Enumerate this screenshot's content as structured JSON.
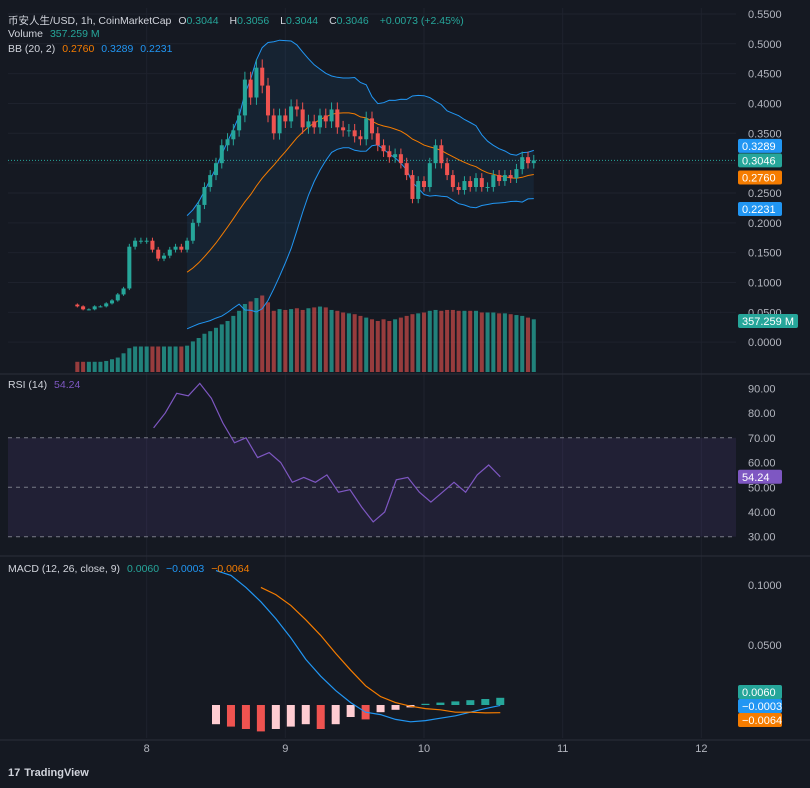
{
  "legend": {
    "symbol": "币安人生/USD, 1h, CoinMarketCap",
    "o_label": "O",
    "o_value": "0.3044",
    "h_label": "H",
    "h_value": "0.3056",
    "l_label": "L",
    "l_value": "0.3044",
    "c_label": "C",
    "c_value": "0.3046",
    "change": "+0.0073 (+2.45%)",
    "volume_label": "Volume",
    "volume_value": "357.259 M",
    "bb_label": "BB (20, 2)",
    "bb_mid": "0.2760",
    "bb_upper": "0.3289",
    "bb_lower": "0.2231",
    "rsi_label": "RSI (14)",
    "rsi_value": "54.24",
    "macd_label": "MACD (12, 26, close, 9)",
    "macd_hist": "0.0060",
    "macd_line": "−0.0003",
    "macd_signal": "−0.0064"
  },
  "branding": {
    "logo_mark": "17",
    "logo_text": "TradingView"
  },
  "colors": {
    "up": "#26a69a",
    "down": "#ef5350",
    "bb": "#2196f3",
    "basis": "#f57c00",
    "rsi": "#7e57c2",
    "macd": "#2196f3",
    "signal": "#f57c00",
    "text": "#b2b5be",
    "bg": "#151922"
  },
  "chart_data": [
    {
      "type": "candlestick",
      "panel": "price",
      "title": "币安人生/USD, 1h, CoinMarketCap",
      "y_ticks": [
        "0.5500",
        "0.5000",
        "0.4500",
        "0.4000",
        "0.3500",
        "0.3000",
        "0.2500",
        "0.2000",
        "0.1500",
        "0.1000",
        "0.0500",
        "0.0000"
      ],
      "ylim": [
        -0.05,
        0.56
      ],
      "x_ticks": [
        "8",
        "9",
        "10",
        "11",
        "12"
      ],
      "x_tick_days": [
        8,
        9,
        10,
        11,
        12
      ],
      "xlim": [
        7.0,
        12.25
      ],
      "start_day": 7.5,
      "bar_hours": 1,
      "close": [
        0.06,
        0.055,
        0.055,
        0.06,
        0.06,
        0.065,
        0.07,
        0.08,
        0.09,
        0.16,
        0.17,
        0.17,
        0.17,
        0.155,
        0.14,
        0.145,
        0.155,
        0.16,
        0.155,
        0.17,
        0.2,
        0.23,
        0.26,
        0.28,
        0.3,
        0.33,
        0.34,
        0.355,
        0.38,
        0.44,
        0.41,
        0.46,
        0.43,
        0.38,
        0.35,
        0.38,
        0.37,
        0.395,
        0.39,
        0.36,
        0.37,
        0.36,
        0.38,
        0.37,
        0.39,
        0.36,
        0.355,
        0.355,
        0.345,
        0.34,
        0.375,
        0.35,
        0.33,
        0.32,
        0.31,
        0.315,
        0.3,
        0.28,
        0.24,
        0.27,
        0.26,
        0.3,
        0.33,
        0.3,
        0.28,
        0.26,
        0.255,
        0.27,
        0.26,
        0.275,
        0.26,
        0.26,
        0.28,
        0.27,
        0.28,
        0.275,
        0.29,
        0.31,
        0.3,
        0.3046
      ],
      "series": [
        {
          "name": "BB Upper",
          "value": 0.3289
        },
        {
          "name": "BB Basis",
          "value": 0.276
        },
        {
          "name": "BB Lower",
          "value": 0.2231
        }
      ],
      "last_price": 0.3046
    },
    {
      "type": "bar",
      "panel": "volume",
      "title": "Volume",
      "last_value": "357.259 M",
      "values": [
        0.12,
        0.12,
        0.12,
        0.12,
        0.12,
        0.13,
        0.15,
        0.17,
        0.22,
        0.28,
        0.3,
        0.3,
        0.3,
        0.3,
        0.3,
        0.3,
        0.3,
        0.3,
        0.3,
        0.31,
        0.36,
        0.4,
        0.45,
        0.48,
        0.52,
        0.56,
        0.6,
        0.66,
        0.72,
        0.8,
        0.83,
        0.87,
        0.9,
        0.82,
        0.72,
        0.74,
        0.73,
        0.74,
        0.75,
        0.73,
        0.75,
        0.76,
        0.77,
        0.76,
        0.73,
        0.72,
        0.7,
        0.69,
        0.68,
        0.66,
        0.64,
        0.62,
        0.6,
        0.62,
        0.6,
        0.62,
        0.64,
        0.66,
        0.68,
        0.69,
        0.7,
        0.72,
        0.73,
        0.72,
        0.73,
        0.73,
        0.72,
        0.72,
        0.72,
        0.72,
        0.7,
        0.7,
        0.7,
        0.69,
        0.69,
        0.68,
        0.67,
        0.66,
        0.64,
        0.62
      ]
    },
    {
      "type": "line",
      "panel": "rsi",
      "title": "RSI (14)",
      "y_ticks": [
        "90.00",
        "80.00",
        "70.00",
        "60.00",
        "50.00",
        "40.00",
        "30.00"
      ],
      "ylim": [
        23,
        95
      ],
      "band": [
        30,
        70
      ],
      "midline": 50,
      "start_day": 8.05,
      "end_day": 10.55,
      "values": [
        74,
        80,
        88,
        87,
        92,
        86,
        76,
        68,
        70,
        62,
        64,
        60,
        52,
        54,
        52,
        55,
        48,
        49,
        42,
        36,
        40,
        53,
        54,
        48,
        44,
        48,
        52,
        48,
        55,
        59,
        54.24
      ],
      "last_value": "54.24"
    },
    {
      "type": "line",
      "panel": "macd",
      "title": "MACD (12, 26, close, 9)",
      "y_ticks": [
        "0.1000",
        "0.0500"
      ],
      "ylim": [
        -0.0275,
        0.1225
      ],
      "start_day": 8.5,
      "series": [
        {
          "name": "MACD",
          "values": [
            0.112,
            0.108,
            0.098,
            0.086,
            0.072,
            0.056,
            0.038,
            0.024,
            0.012,
            0.002,
            -0.006,
            -0.008,
            -0.012,
            -0.014,
            -0.013,
            -0.011,
            -0.009,
            -0.006,
            -0.003,
            -0.0003
          ]
        },
        {
          "name": "Signal",
          "values": [
            null,
            null,
            null,
            0.098,
            0.092,
            0.083,
            0.071,
            0.058,
            0.043,
            0.029,
            0.016,
            0.007,
            0.002,
            -0.001,
            -0.003,
            -0.004,
            -0.006,
            -0.006,
            -0.0066,
            -0.0064
          ]
        }
      ],
      "histogram": [
        -0.016,
        -0.018,
        -0.02,
        -0.022,
        -0.02,
        -0.018,
        -0.016,
        -0.02,
        -0.016,
        -0.01,
        -0.012,
        -0.006,
        -0.004,
        -0.002,
        0.001,
        0.002,
        0.003,
        0.004,
        0.005,
        0.006
      ],
      "last_values": {
        "MACD": "−0.0003",
        "Signal": "−0.0064",
        "Histogram": "0.0060"
      }
    }
  ]
}
